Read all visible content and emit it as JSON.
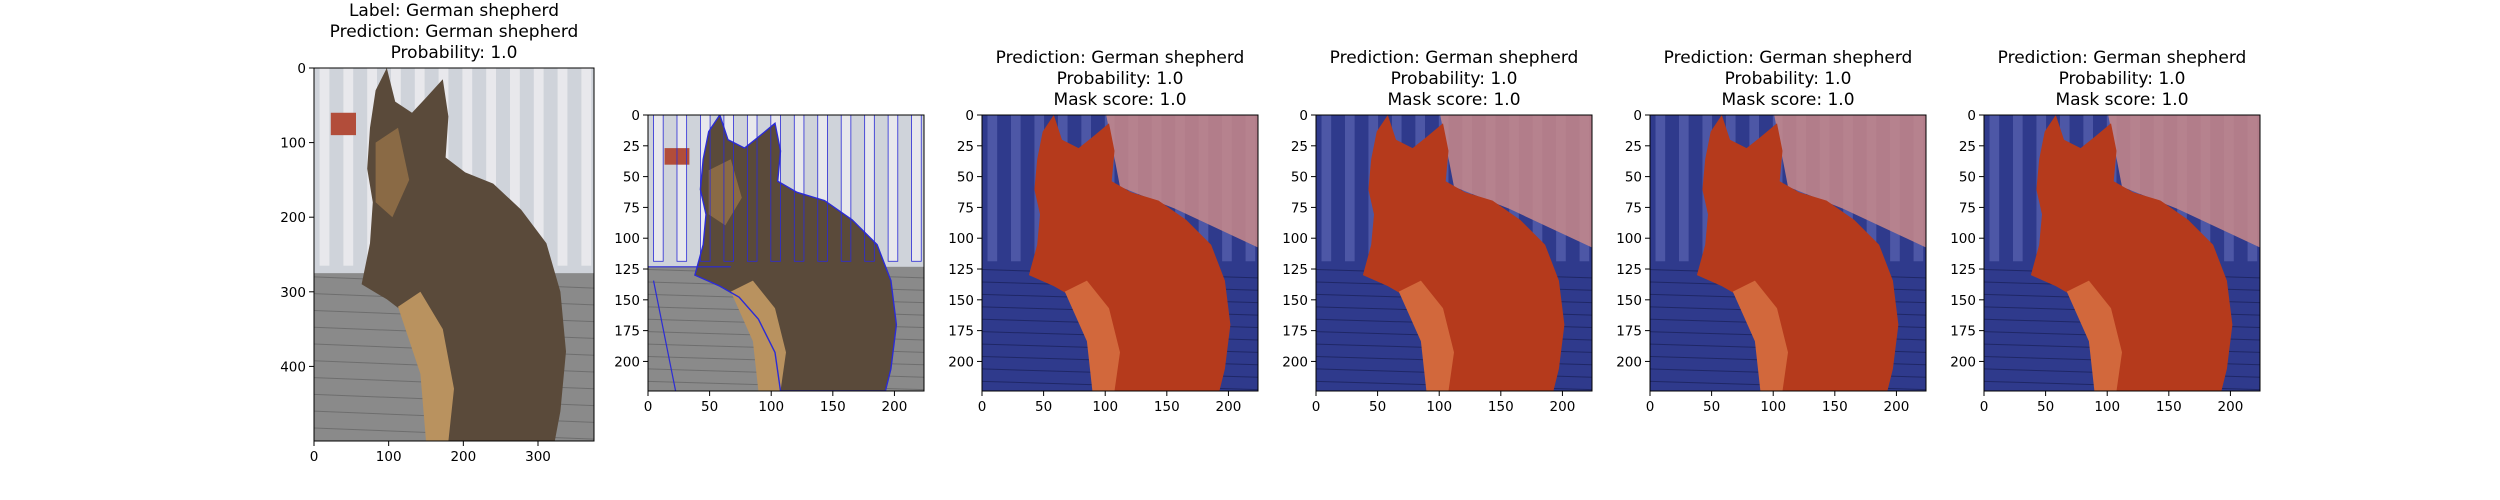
{
  "panels": [
    {
      "kind": "original",
      "title_lines": [
        "Label: German shepherd",
        "Prediction: German shepherd",
        "Probability: 1.0"
      ],
      "x_ticks": [
        0,
        100,
        200,
        300
      ],
      "y_ticks": [
        0,
        100,
        200,
        300,
        400
      ],
      "image_size": [
        375,
        500
      ]
    },
    {
      "kind": "edges",
      "title_lines": [],
      "x_ticks": [
        0,
        50,
        100,
        150,
        200
      ],
      "y_ticks": [
        0,
        25,
        50,
        75,
        100,
        125,
        150,
        175,
        200
      ],
      "image_size": [
        224,
        224
      ]
    },
    {
      "kind": "mask",
      "title_lines": [
        "Prediction: German shepherd",
        "Probability: 1.0",
        "Mask score: 1.0"
      ],
      "x_ticks": [
        0,
        50,
        100,
        150,
        200
      ],
      "y_ticks": [
        0,
        25,
        50,
        75,
        100,
        125,
        150,
        175,
        200
      ],
      "image_size": [
        224,
        224
      ]
    },
    {
      "kind": "mask",
      "title_lines": [
        "Prediction: German shepherd",
        "Probability: 1.0",
        "Mask score: 1.0"
      ],
      "x_ticks": [
        0,
        50,
        100,
        150,
        200
      ],
      "y_ticks": [
        0,
        25,
        50,
        75,
        100,
        125,
        150,
        175,
        200
      ],
      "image_size": [
        224,
        224
      ]
    },
    {
      "kind": "mask",
      "title_lines": [
        "Prediction: German shepherd",
        "Probability: 1.0",
        "Mask score: 1.0"
      ],
      "x_ticks": [
        0,
        50,
        100,
        150,
        200
      ],
      "y_ticks": [
        0,
        25,
        50,
        75,
        100,
        125,
        150,
        175,
        200
      ],
      "image_size": [
        224,
        224
      ]
    },
    {
      "kind": "mask",
      "title_lines": [
        "Prediction: German shepherd",
        "Probability: 1.0",
        "Mask score: 1.0"
      ],
      "x_ticks": [
        0,
        50,
        100,
        150,
        200
      ],
      "y_ticks": [
        0,
        25,
        50,
        75,
        100,
        125,
        150,
        175,
        200
      ],
      "image_size": [
        224,
        224
      ]
    }
  ],
  "colors": {
    "mask_fg": "#b53a1c",
    "mask_bg": "#2f3a8c",
    "dog_fur": "#5a4a3a",
    "deck": "#8a8a8a",
    "railing": "#e8e8ec",
    "edge_line": "#2b2bd6"
  }
}
